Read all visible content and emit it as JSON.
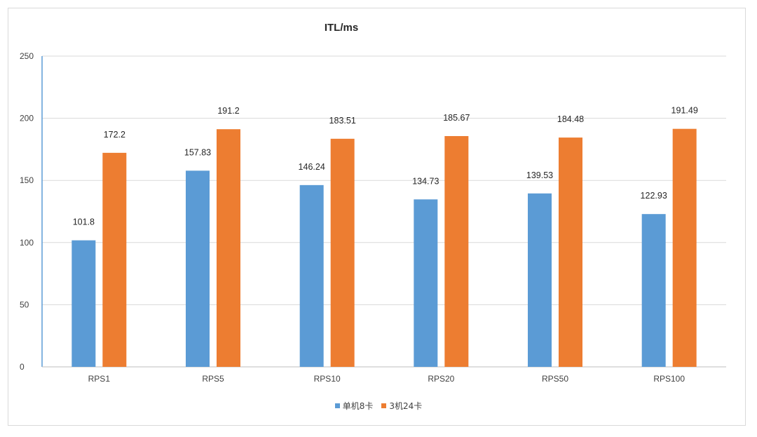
{
  "chart_data": {
    "type": "bar",
    "title": "ITL/ms",
    "categories": [
      "RPS1",
      "RPS5",
      "RPS10",
      "RPS20",
      "RPS50",
      "RPS100"
    ],
    "series": [
      {
        "name": "单机8卡",
        "color": "#5b9bd5",
        "values": [
          101.8,
          157.83,
          146.24,
          134.73,
          139.53,
          122.93
        ]
      },
      {
        "name": "3机24卡",
        "color": "#ed7d31",
        "values": [
          172.2,
          191.2,
          183.51,
          185.67,
          184.48,
          191.49
        ]
      }
    ],
    "ylim": [
      0,
      250
    ],
    "yticks": [
      0,
      50,
      100,
      150,
      200,
      250
    ],
    "grid": true,
    "legend_position": "bottom"
  }
}
